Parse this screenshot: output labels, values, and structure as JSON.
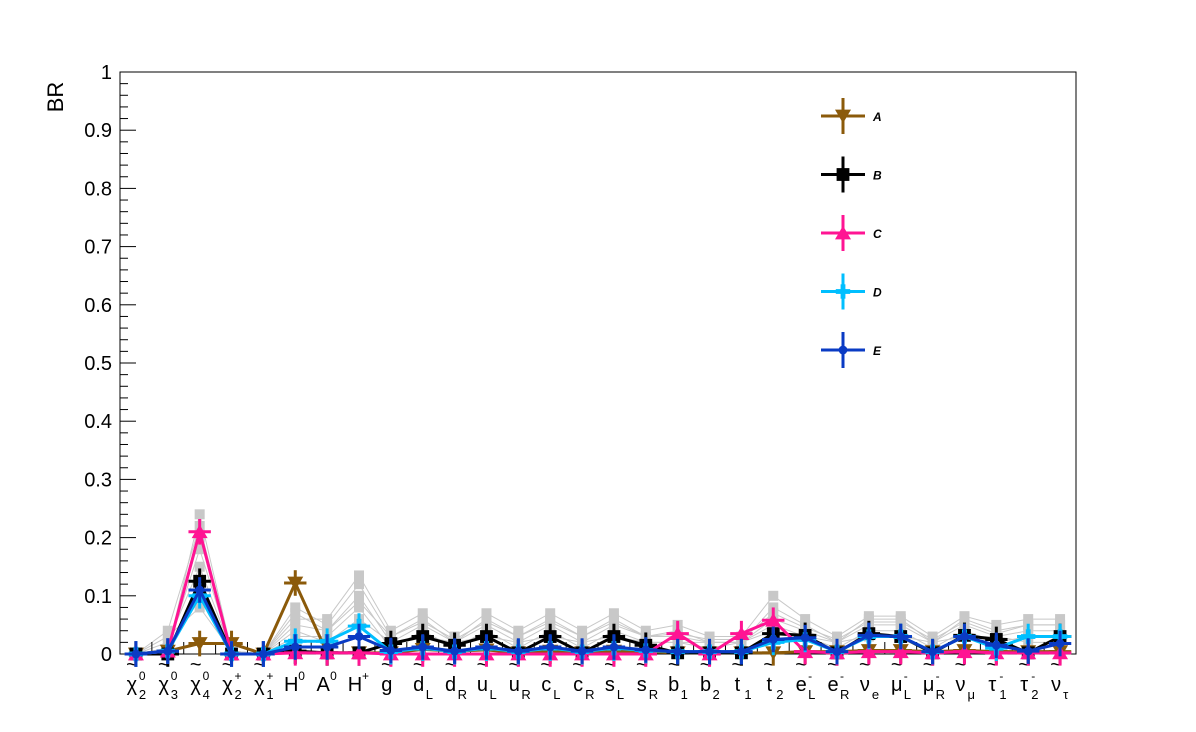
{
  "chart_data": {
    "type": "line",
    "xlabel": "",
    "ylabel": "BR",
    "ylim": [
      0,
      1
    ],
    "yticks": [
      "0",
      "0.1",
      "0.2",
      "0.3",
      "0.4",
      "0.5",
      "0.6",
      "0.7",
      "0.8",
      "0.9",
      "1"
    ],
    "legend_position": "top-right",
    "grid": false,
    "categories": [
      {
        "base": "χ",
        "tilde": true,
        "sub": "2",
        "sup": "0"
      },
      {
        "base": "χ",
        "tilde": true,
        "sub": "3",
        "sup": "0"
      },
      {
        "base": "χ",
        "tilde": true,
        "sub": "4",
        "sup": "0"
      },
      {
        "base": "χ",
        "tilde": true,
        "sub": "2",
        "sup": "+"
      },
      {
        "base": "χ",
        "tilde": true,
        "sub": "1",
        "sup": "+"
      },
      {
        "base": "H",
        "tilde": false,
        "sub": "",
        "sup": "0"
      },
      {
        "base": "A",
        "tilde": false,
        "sub": "",
        "sup": "0"
      },
      {
        "base": "H",
        "tilde": false,
        "sub": "",
        "sup": "+"
      },
      {
        "base": "g",
        "tilde": true,
        "sub": "",
        "sup": ""
      },
      {
        "base": "d",
        "tilde": true,
        "sub": "L",
        "sup": ""
      },
      {
        "base": "d",
        "tilde": true,
        "sub": "R",
        "sup": ""
      },
      {
        "base": "u",
        "tilde": true,
        "sub": "L",
        "sup": ""
      },
      {
        "base": "u",
        "tilde": true,
        "sub": "R",
        "sup": ""
      },
      {
        "base": "c",
        "tilde": true,
        "sub": "L",
        "sup": ""
      },
      {
        "base": "c",
        "tilde": true,
        "sub": "R",
        "sup": ""
      },
      {
        "base": "s",
        "tilde": true,
        "sub": "L",
        "sup": ""
      },
      {
        "base": "s",
        "tilde": true,
        "sub": "R",
        "sup": ""
      },
      {
        "base": "b",
        "tilde": true,
        "sub": "1",
        "sup": ""
      },
      {
        "base": "b",
        "tilde": true,
        "sub": "2",
        "sup": ""
      },
      {
        "base": "t",
        "tilde": true,
        "sub": "1",
        "sup": ""
      },
      {
        "base": "t",
        "tilde": true,
        "sub": "2",
        "sup": ""
      },
      {
        "base": "e",
        "tilde": true,
        "sub": "L",
        "sup": "-"
      },
      {
        "base": "e",
        "tilde": true,
        "sub": "R",
        "sup": "-"
      },
      {
        "base": "ν",
        "tilde": true,
        "sub": "e",
        "sup": ""
      },
      {
        "base": "μ",
        "tilde": true,
        "sub": "L",
        "sup": "-"
      },
      {
        "base": "μ",
        "tilde": true,
        "sub": "R",
        "sup": "-"
      },
      {
        "base": "ν",
        "tilde": true,
        "sub": "μ",
        "sup": ""
      },
      {
        "base": "τ",
        "tilde": true,
        "sub": "1",
        "sup": "-"
      },
      {
        "base": "τ",
        "tilde": true,
        "sub": "2",
        "sup": "-"
      },
      {
        "base": "ν",
        "tilde": true,
        "sub": "τ",
        "sup": ""
      }
    ],
    "series": [
      {
        "name": "A",
        "color": "#8B5A0A",
        "marker": "triangle-down",
        "values": [
          0,
          0.005,
          0.018,
          0.018,
          0,
          0.122,
          0.002,
          0.002,
          0.002,
          0.008,
          0.005,
          0.007,
          0.002,
          0.005,
          0.002,
          0.005,
          0.004,
          0.002,
          0.002,
          0.002,
          0.002,
          0.004,
          0.004,
          0.006,
          0.006,
          0.004,
          0.006,
          0.004,
          0.004,
          0.004
        ]
      },
      {
        "name": "B",
        "color": "#000000",
        "marker": "square",
        "values": [
          0,
          0,
          0.125,
          0,
          0,
          0.005,
          0.002,
          0.002,
          0.018,
          0.03,
          0.015,
          0.03,
          0.002,
          0.03,
          0.002,
          0.03,
          0.015,
          0.002,
          0.002,
          0.002,
          0.035,
          0.032,
          0.002,
          0.035,
          0.03,
          0.002,
          0.032,
          0.025,
          0.002,
          0.03
        ]
      },
      {
        "name": "C",
        "color": "#FF1493",
        "marker": "triangle-up",
        "values": [
          0,
          0.005,
          0.21,
          0,
          0,
          0.002,
          0.002,
          0.002,
          0,
          0,
          0,
          0,
          0,
          0,
          0,
          0,
          0,
          0.035,
          0,
          0.035,
          0.058,
          0.004,
          0.002,
          0.004,
          0.004,
          0.002,
          0.004,
          0.002,
          0.002,
          0.002
        ]
      },
      {
        "name": "D",
        "color": "#00BFFF",
        "marker": "cross",
        "values": [
          0,
          0.005,
          0.1,
          0,
          0,
          0.022,
          0.022,
          0.048,
          0.004,
          0.01,
          0.004,
          0.01,
          0.004,
          0.01,
          0.004,
          0.01,
          0.006,
          0.004,
          0.004,
          0.004,
          0.02,
          0.025,
          0.004,
          0.03,
          0.03,
          0.004,
          0.03,
          0.01,
          0.03,
          0.03
        ]
      },
      {
        "name": "E",
        "color": "#0A3BC4",
        "marker": "circle",
        "values": [
          0,
          0.005,
          0.11,
          0,
          0,
          0.012,
          0.012,
          0.03,
          0.006,
          0.012,
          0.005,
          0.012,
          0.005,
          0.012,
          0.005,
          0.012,
          0.007,
          0.004,
          0.004,
          0.004,
          0.025,
          0.028,
          0.004,
          0.032,
          0.03,
          0.004,
          0.03,
          0.015,
          0.005,
          0.018
        ]
      }
    ],
    "background_series": {
      "color": "#C8C8C8",
      "values": [
        [
          0,
          0.01,
          0.2,
          0.005,
          0,
          0.05,
          0.04,
          0.1,
          0.02,
          0.05,
          0.02,
          0.05,
          0.02,
          0.05,
          0.02,
          0.05,
          0.03,
          0.03,
          0.02,
          0.02,
          0.06,
          0.04,
          0.02,
          0.05,
          0.05,
          0.02,
          0.05,
          0.03,
          0.04,
          0.04
        ],
        [
          0,
          0.02,
          0.15,
          0.005,
          0,
          0.08,
          0.05,
          0.12,
          0.03,
          0.06,
          0.02,
          0.06,
          0.03,
          0.06,
          0.03,
          0.06,
          0.03,
          0.04,
          0.02,
          0.02,
          0.08,
          0.05,
          0.02,
          0.06,
          0.06,
          0.02,
          0.06,
          0.04,
          0.05,
          0.05
        ],
        [
          0,
          0.005,
          0.24,
          0.005,
          0,
          0.03,
          0.03,
          0.08,
          0.01,
          0.04,
          0.01,
          0.04,
          0.01,
          0.04,
          0.01,
          0.04,
          0.02,
          0.02,
          0.01,
          0.02,
          0.05,
          0.03,
          0.01,
          0.04,
          0.04,
          0.01,
          0.04,
          0.02,
          0.03,
          0.03
        ],
        [
          0,
          0.01,
          0.18,
          0.005,
          0,
          0.06,
          0.06,
          0.135,
          0.04,
          0.07,
          0.03,
          0.07,
          0.04,
          0.07,
          0.04,
          0.07,
          0.04,
          0.05,
          0.03,
          0.03,
          0.1,
          0.06,
          0.03,
          0.065,
          0.065,
          0.03,
          0.065,
          0.05,
          0.06,
          0.06
        ],
        [
          0,
          0.03,
          0.08,
          0.005,
          0,
          0.04,
          0.02,
          0.06,
          0.02,
          0.03,
          0.02,
          0.03,
          0.02,
          0.03,
          0.02,
          0.03,
          0.02,
          0.02,
          0.02,
          0.02,
          0.04,
          0.03,
          0.02,
          0.03,
          0.03,
          0.02,
          0.03,
          0.03,
          0.02,
          0.02
        ],
        [
          0,
          0.04,
          0.22,
          0.005,
          0,
          0.07,
          0.04,
          0.09,
          0.03,
          0.055,
          0.025,
          0.055,
          0.03,
          0.055,
          0.03,
          0.055,
          0.03,
          0.035,
          0.025,
          0.025,
          0.07,
          0.045,
          0.025,
          0.055,
          0.055,
          0.025,
          0.055,
          0.035,
          0.05,
          0.05
        ]
      ]
    }
  }
}
